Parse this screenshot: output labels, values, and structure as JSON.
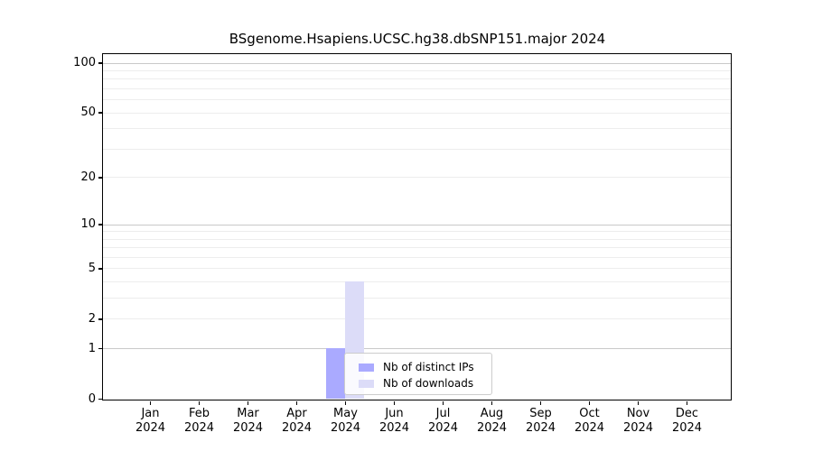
{
  "title": "BSgenome.Hsapiens.UCSC.hg38.dbSNP151.major 2024",
  "legend": {
    "items": [
      {
        "label": "Nb of distinct IPs",
        "color": "#aaaaff"
      },
      {
        "label": "Nb of downloads",
        "color": "#dcdcf8"
      }
    ]
  },
  "chart_data": {
    "type": "bar",
    "title": "BSgenome.Hsapiens.UCSC.hg38.dbSNP151.major 2024",
    "categories": [
      "Jan 2024",
      "Feb 2024",
      "Mar 2024",
      "Apr 2024",
      "May 2024",
      "Jun 2024",
      "Jul 2024",
      "Aug 2024",
      "Sep 2024",
      "Oct 2024",
      "Nov 2024",
      "Dec 2024"
    ],
    "x_tick_line1": [
      "Jan",
      "Feb",
      "Mar",
      "Apr",
      "May",
      "Jun",
      "Jul",
      "Aug",
      "Sep",
      "Oct",
      "Nov",
      "Dec"
    ],
    "x_tick_line2": "2024",
    "series": [
      {
        "name": "Nb of distinct IPs",
        "color": "#aaaaff",
        "values": [
          0,
          0,
          0,
          0,
          1,
          0,
          0,
          0,
          0,
          0,
          0,
          0
        ]
      },
      {
        "name": "Nb of downloads",
        "color": "#dcdcf8",
        "values": [
          0,
          0,
          0,
          0,
          4,
          0,
          0,
          0,
          0,
          0,
          0,
          0
        ]
      }
    ],
    "xlabel": "",
    "ylabel": "",
    "yscale": "log1p",
    "ylim": [
      0,
      114
    ],
    "y_ticks": [
      0,
      1,
      2,
      5,
      10,
      20,
      50,
      100
    ],
    "grid": true,
    "grid_major_values": [
      1,
      10,
      100
    ],
    "grid_minor_values": [
      2,
      3,
      4,
      5,
      6,
      7,
      8,
      9,
      20,
      30,
      40,
      50,
      60,
      70,
      80,
      90
    ],
    "legend_position": "lower center-left inside plot"
  },
  "colors": {
    "grid_major": "#c9c9c9",
    "grid_minor": "#ededed",
    "axis": "#000000",
    "legend_border": "#cccccc",
    "background": "#ffffff"
  }
}
